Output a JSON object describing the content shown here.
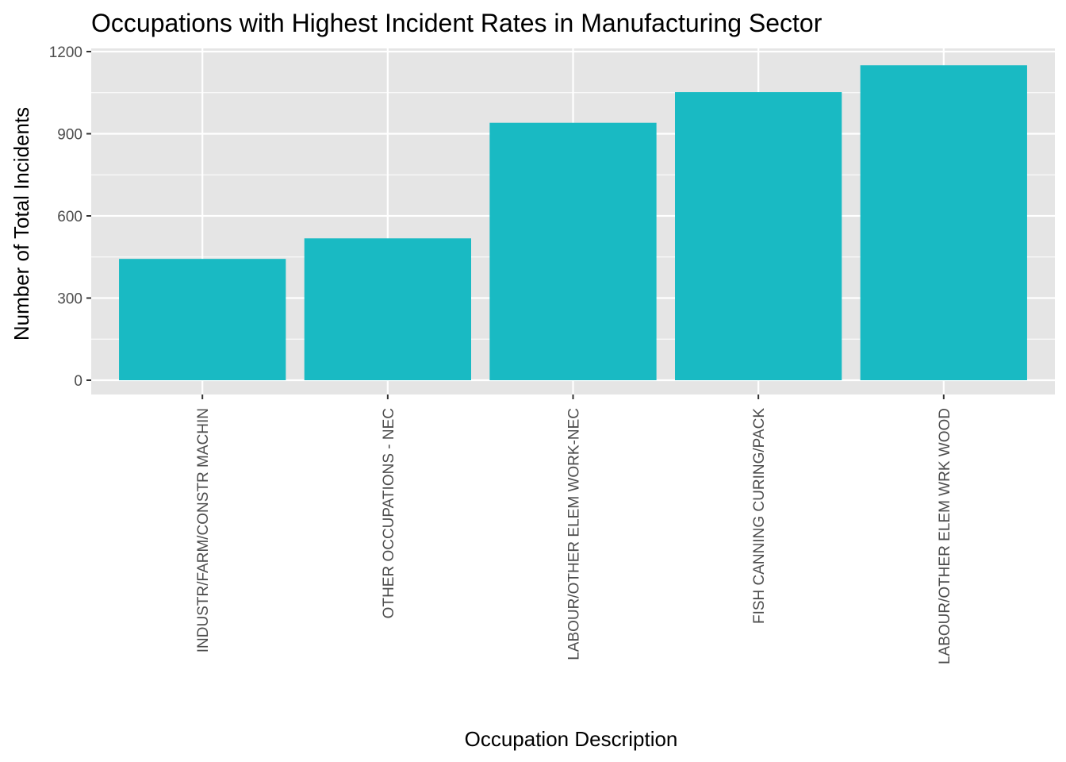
{
  "chart_data": {
    "type": "bar",
    "title": "Occupations with Highest Incident Rates in Manufacturing Sector",
    "xlabel": "Occupation Description",
    "ylabel": "Number of Total Incidents",
    "categories": [
      "INDUSTR/FARM/CONSTR MACHIN",
      "OTHER OCCUPATIONS - NEC",
      "LABOUR/OTHER ELEM WORK-NEC",
      "FISH CANNING CURING/PACK",
      "LABOUR/OTHER ELEM WRK WOOD"
    ],
    "values": [
      443,
      518,
      940,
      1052,
      1150
    ],
    "ylim": [
      0,
      1200
    ],
    "yticks": [
      0,
      300,
      600,
      900,
      1200
    ],
    "grid": true,
    "legend": "none",
    "colors": {
      "bar": "#19BAC3",
      "panel": "#E5E5E5",
      "grid": "#FFFFFF",
      "tick_text": "#4D4D4D",
      "tick_mark": "#333333"
    }
  }
}
